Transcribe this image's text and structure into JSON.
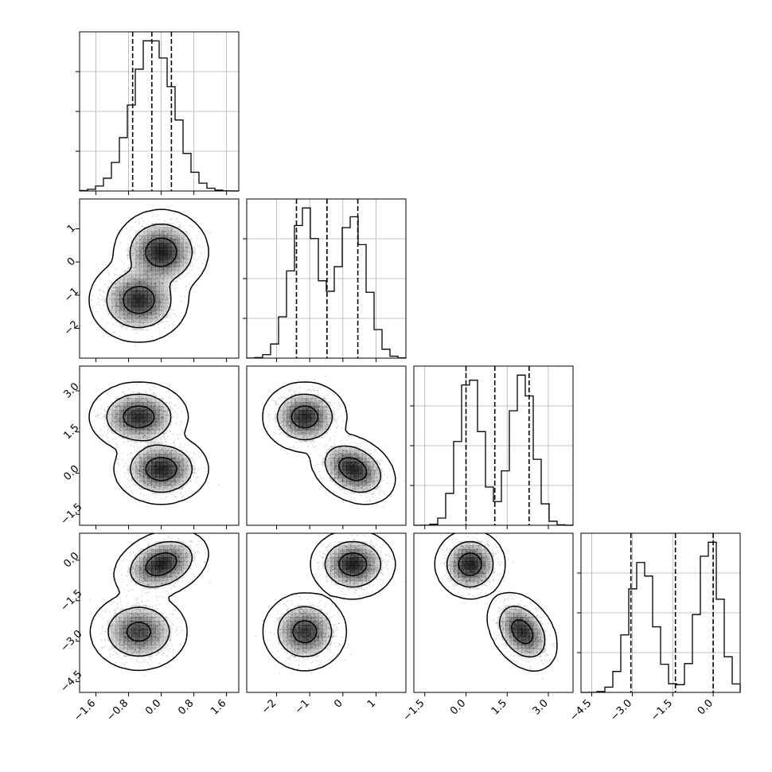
{
  "chart_data": {
    "type": "corner",
    "colors": {
      "line": "#000000",
      "grid": "#b0b0b0",
      "density": "#000000",
      "scatter": "#000000"
    },
    "grid": true,
    "quantiles": [
      0.16,
      0.5,
      0.84
    ],
    "levels": [
      0.39,
      0.86,
      0.99
    ],
    "parameters": [
      {
        "range": [
          -2.0,
          1.9
        ],
        "ticks": [
          -1.6,
          -0.8,
          0.0,
          0.8,
          1.6
        ],
        "tick_labels": [
          "−1.6",
          "−0.8",
          "0.0",
          "0.8",
          "1.6"
        ],
        "modes": [
          {
            "w": 1.0,
            "mu": -0.2,
            "sd": 0.5
          }
        ],
        "quantile_values": [
          -0.7,
          -0.23,
          0.25
        ]
      },
      {
        "range": [
          -2.9,
          1.9
        ],
        "ticks": [
          -2,
          -1,
          0,
          1
        ],
        "tick_labels": [
          "−2",
          "−1",
          "0",
          "1"
        ],
        "modes": [
          {
            "w": 0.5,
            "mu": -1.15,
            "sd": 0.42
          },
          {
            "w": 0.5,
            "mu": 0.3,
            "sd": 0.42
          }
        ],
        "quantile_values": [
          -1.4,
          -0.48,
          0.45
        ]
      },
      {
        "range": [
          -1.9,
          3.9
        ],
        "ticks": [
          -1.5,
          0.0,
          1.5,
          3.0
        ],
        "tick_labels": [
          "−1.5",
          "0.0",
          "1.5",
          "3.0"
        ],
        "modes": [
          {
            "w": 0.5,
            "mu": 0.15,
            "sd": 0.42
          },
          {
            "w": 0.5,
            "mu": 2.05,
            "sd": 0.42
          }
        ],
        "quantile_values": [
          0.0,
          1.05,
          2.3
        ]
      },
      {
        "range": [
          -4.9,
          1.0
        ],
        "ticks": [
          -4.5,
          -3.0,
          -1.5,
          0.0
        ],
        "tick_labels": [
          "−4.5",
          "−3.0",
          "−1.5",
          "0.0"
        ],
        "modes": [
          {
            "w": 0.5,
            "mu": -2.65,
            "sd": 0.48
          },
          {
            "w": 0.5,
            "mu": -0.15,
            "sd": 0.42
          }
        ],
        "quantile_values": [
          -3.05,
          -1.4,
          0.0
        ]
      }
    ],
    "pairs": [
      {
        "x": 0,
        "y": 1,
        "clusters": [
          {
            "mx": -0.55,
            "my": -1.15,
            "sx": 0.4,
            "sy": 0.42,
            "rho": 0.0,
            "w": 0.5
          },
          {
            "mx": 0.0,
            "my": 0.3,
            "sx": 0.38,
            "sy": 0.42,
            "rho": 0.0,
            "w": 0.5
          }
        ]
      },
      {
        "x": 0,
        "y": 2,
        "clusters": [
          {
            "mx": -0.55,
            "my": 2.05,
            "sx": 0.4,
            "sy": 0.42,
            "rho": 0.0,
            "w": 0.5
          },
          {
            "mx": 0.0,
            "my": 0.15,
            "sx": 0.38,
            "sy": 0.42,
            "rho": 0.0,
            "w": 0.5
          }
        ]
      },
      {
        "x": 0,
        "y": 3,
        "clusters": [
          {
            "mx": -0.55,
            "my": -2.65,
            "sx": 0.4,
            "sy": 0.48,
            "rho": 0.0,
            "w": 0.5
          },
          {
            "mx": 0.0,
            "my": -0.15,
            "sx": 0.38,
            "sy": 0.42,
            "rho": 0.3,
            "w": 0.5
          }
        ]
      },
      {
        "x": 1,
        "y": 2,
        "clusters": [
          {
            "mx": -1.15,
            "my": 2.05,
            "sx": 0.42,
            "sy": 0.42,
            "rho": 0.0,
            "w": 0.5
          },
          {
            "mx": 0.3,
            "my": 0.15,
            "sx": 0.42,
            "sy": 0.42,
            "rho": -0.3,
            "w": 0.5
          }
        ]
      },
      {
        "x": 1,
        "y": 3,
        "clusters": [
          {
            "mx": -1.15,
            "my": -2.65,
            "sx": 0.42,
            "sy": 0.48,
            "rho": 0.0,
            "w": 0.5
          },
          {
            "mx": 0.3,
            "my": -0.15,
            "sx": 0.42,
            "sy": 0.42,
            "rho": 0.0,
            "w": 0.5
          }
        ]
      },
      {
        "x": 2,
        "y": 3,
        "clusters": [
          {
            "mx": 0.15,
            "my": -0.15,
            "sx": 0.42,
            "sy": 0.42,
            "rho": 0.0,
            "w": 0.5
          },
          {
            "mx": 2.05,
            "my": -2.65,
            "sx": 0.42,
            "sy": 0.48,
            "rho": -0.35,
            "w": 0.5
          }
        ]
      }
    ]
  }
}
